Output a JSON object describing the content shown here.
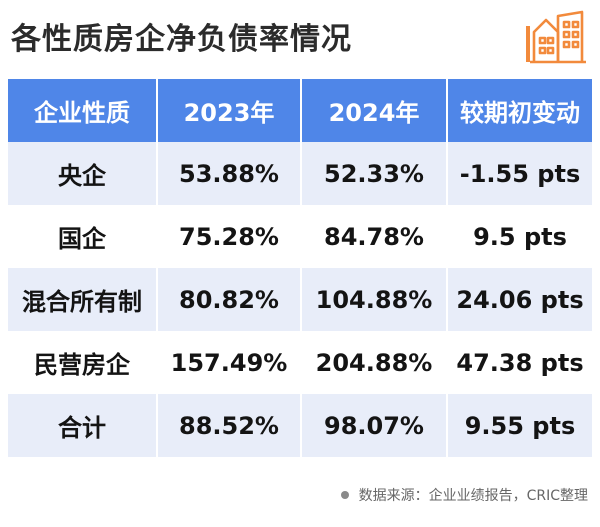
{
  "title": "各性质房企净负债率情况",
  "colors": {
    "header_bg": "#4f86e8",
    "row_alt_bg": "#e8edf9",
    "icon": "#f28a3c"
  },
  "icons": {
    "header": "building-icon",
    "footer": "bullet-dot-icon"
  },
  "table": {
    "columns": [
      "企业性质",
      "2023年",
      "2024年",
      "较期初变动"
    ],
    "rows": [
      [
        "央企",
        "53.88%",
        "52.33%",
        "-1.55 pts"
      ],
      [
        "国企",
        "75.28%",
        "84.78%",
        "9.5 pts"
      ],
      [
        "混合所有制",
        "80.82%",
        "104.88%",
        "24.06 pts"
      ],
      [
        "民营房企",
        "157.49%",
        "204.88%",
        "47.38 pts"
      ],
      [
        "合计",
        "88.52%",
        "98.07%",
        "9.55 pts"
      ]
    ]
  },
  "footer": {
    "source": "数据来源：企业业绩报告，CRIC整理"
  }
}
